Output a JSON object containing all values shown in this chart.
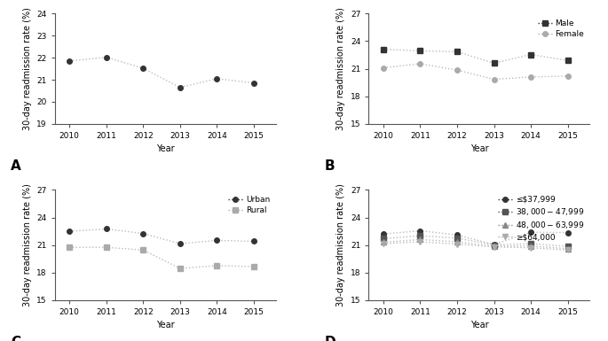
{
  "years": [
    2010,
    2011,
    2012,
    2013,
    2014,
    2015
  ],
  "panel_A": {
    "label": "A",
    "series": [
      {
        "values": [
          21.85,
          22.02,
          21.52,
          20.65,
          21.05,
          20.85
        ],
        "marker": "o",
        "color": "#333333",
        "linestyle": ":"
      }
    ],
    "ylim": [
      19,
      24
    ],
    "yticks": [
      19,
      20,
      21,
      22,
      23,
      24
    ],
    "ylabel": "30-day readmission rate (%)"
  },
  "panel_B": {
    "label": "B",
    "series": [
      {
        "name": "Male",
        "values": [
          23.1,
          22.95,
          22.85,
          21.6,
          22.55,
          21.9
        ],
        "marker": "s",
        "color": "#333333",
        "linestyle": ":"
      },
      {
        "name": "Female",
        "values": [
          21.1,
          21.55,
          20.85,
          19.85,
          20.1,
          20.2
        ],
        "marker": "o",
        "color": "#aaaaaa",
        "linestyle": ":"
      }
    ],
    "ylim": [
      15,
      27
    ],
    "yticks": [
      15,
      18,
      21,
      24,
      27
    ],
    "ylabel": "30-day readmission rate (%)"
  },
  "panel_C": {
    "label": "C",
    "series": [
      {
        "name": "Urban",
        "values": [
          22.5,
          22.75,
          22.25,
          21.15,
          21.5,
          21.4
        ],
        "marker": "o",
        "color": "#333333",
        "linestyle": ":"
      },
      {
        "name": "Rural",
        "values": [
          20.75,
          20.75,
          20.45,
          18.45,
          18.75,
          18.65
        ],
        "marker": "s",
        "color": "#aaaaaa",
        "linestyle": ":"
      }
    ],
    "ylim": [
      15,
      27
    ],
    "yticks": [
      15,
      18,
      21,
      24,
      27
    ],
    "ylabel": "30-day readmission rate (%)"
  },
  "panel_D": {
    "label": "D",
    "series": [
      {
        "name": "≤$37,999",
        "values": [
          22.2,
          22.55,
          22.1,
          21.05,
          22.4,
          22.35
        ],
        "marker": "o",
        "color": "#333333",
        "linestyle": ":"
      },
      {
        "name": "$38,000-$47,999",
        "values": [
          21.7,
          22.0,
          21.75,
          21.0,
          21.15,
          20.85
        ],
        "marker": "s",
        "color": "#555555",
        "linestyle": ":"
      },
      {
        "name": "$48,000-$63,999",
        "values": [
          21.3,
          21.6,
          21.35,
          20.85,
          20.9,
          20.6
        ],
        "marker": "^",
        "color": "#888888",
        "linestyle": ":"
      },
      {
        "name": "≥$64,000",
        "values": [
          21.15,
          21.35,
          21.1,
          20.8,
          20.7,
          20.45
        ],
        "marker": "v",
        "color": "#aaaaaa",
        "linestyle": ":"
      }
    ],
    "ylim": [
      15,
      27
    ],
    "yticks": [
      15,
      18,
      21,
      24,
      27
    ],
    "ylabel": "30-day readmission rate (%)"
  },
  "xlabel": "Year",
  "markersize": 4,
  "linewidth": 1.0,
  "line_color": "#bbbbbb",
  "fontsize_axis_label": 7,
  "fontsize_tick": 6.5,
  "fontsize_panel": 11,
  "fontsize_legend": 6.5
}
